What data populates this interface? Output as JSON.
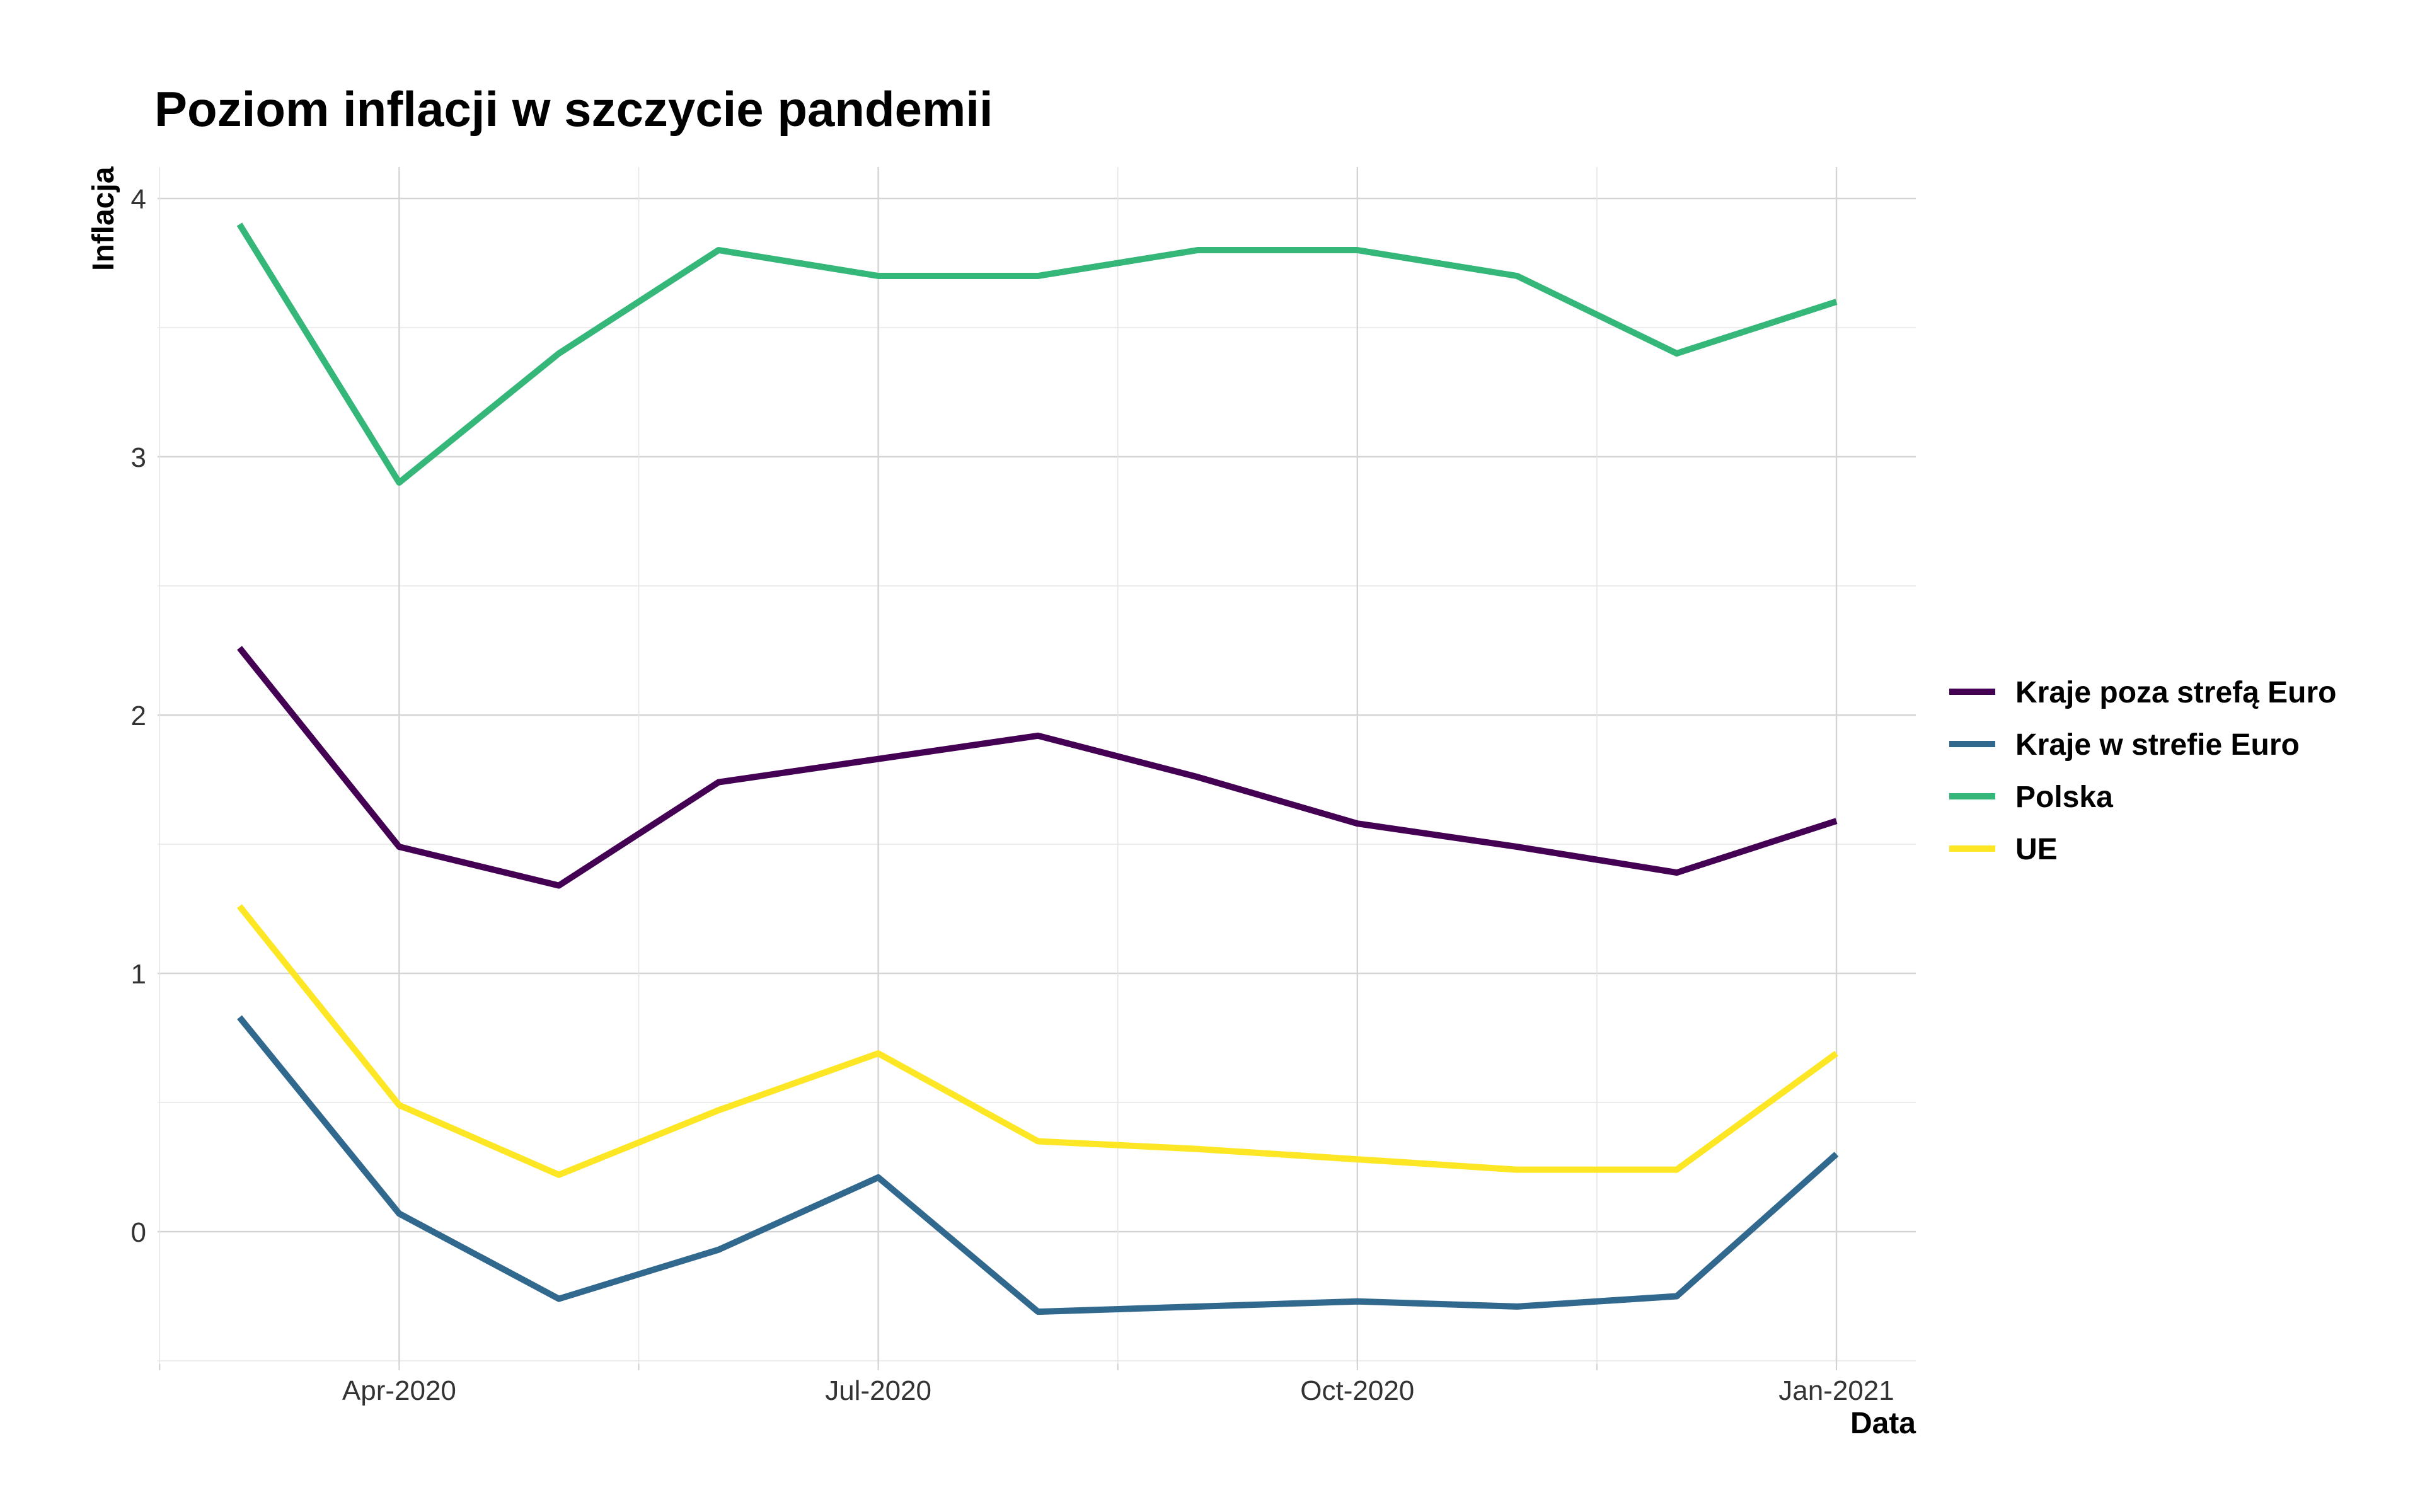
{
  "chart_data": {
    "type": "line",
    "title": "Poziom inflacji w szczycie pandemii",
    "xlabel": "Data",
    "ylabel": "Inflacja",
    "x": [
      "2020-03",
      "2020-04",
      "2020-05",
      "2020-06",
      "2020-07",
      "2020-08",
      "2020-09",
      "2020-10",
      "2020-11",
      "2020-12",
      "2021-01"
    ],
    "x_ticks": [
      {
        "month_index": 1,
        "label": "Apr-2020"
      },
      {
        "month_index": 4,
        "label": "Jul-2020"
      },
      {
        "month_index": 7,
        "label": "Oct-2020"
      },
      {
        "month_index": 10,
        "label": "Jan-2021"
      }
    ],
    "y_ticks": [
      0,
      1,
      2,
      3,
      4
    ],
    "ylim": [
      -0.5,
      4.05
    ],
    "grid": true,
    "legend_position": "right",
    "series": [
      {
        "name": "Kraje poza strefą Euro",
        "color": "#440154",
        "values": [
          2.26,
          1.49,
          1.34,
          1.74,
          1.83,
          1.92,
          1.76,
          1.58,
          1.49,
          1.39,
          1.59
        ]
      },
      {
        "name": "Kraje w strefie Euro",
        "color": "#31688e",
        "values": [
          0.83,
          0.07,
          -0.26,
          -0.07,
          0.21,
          -0.31,
          -0.29,
          -0.27,
          -0.29,
          -0.25,
          0.3
        ]
      },
      {
        "name": "Polska",
        "color": "#35b779",
        "values": [
          3.9,
          2.9,
          3.4,
          3.8,
          3.7,
          3.7,
          3.8,
          3.8,
          3.7,
          3.4,
          3.6
        ]
      },
      {
        "name": "UE",
        "color": "#fde725",
        "values": [
          1.26,
          0.49,
          0.22,
          0.47,
          0.69,
          0.35,
          0.32,
          0.28,
          0.24,
          0.24,
          0.69
        ]
      }
    ]
  }
}
